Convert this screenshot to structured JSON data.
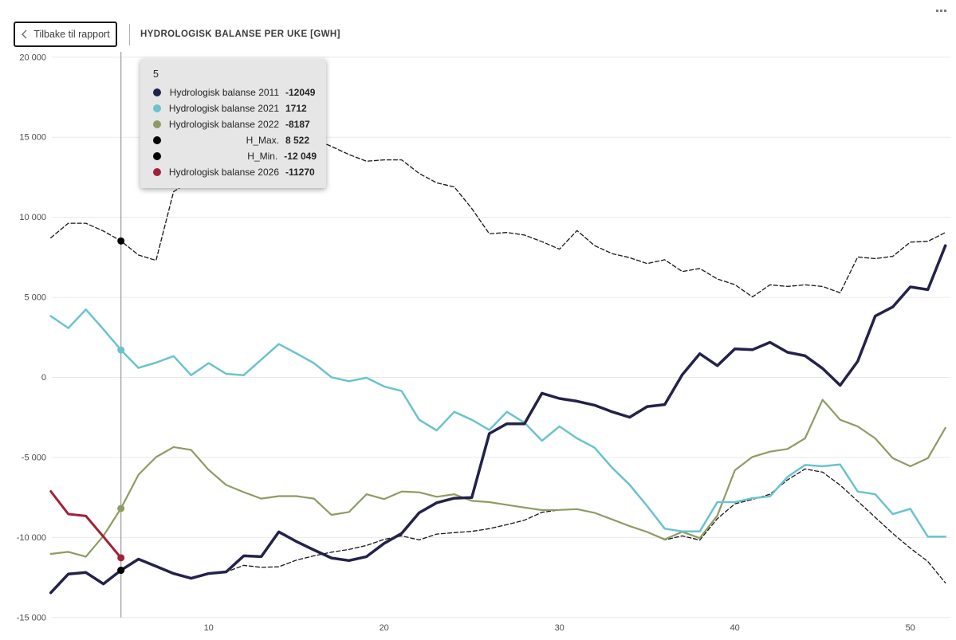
{
  "header": {
    "back_button": {
      "label": "Tilbake til rapport"
    },
    "title": "HYDROLOGISK BALANSE PER UKE [GWH]"
  },
  "tooltip": {
    "week_label": "5",
    "rows": [
      {
        "label": "Hydrologisk balanse 2011",
        "value": "-12049",
        "color": "#23224a"
      },
      {
        "label": "Hydrologisk balanse 2021",
        "value": "1712",
        "color": "#6ac3ce"
      },
      {
        "label": "Hydrologisk balanse 2022",
        "value": "-8187",
        "color": "#8d9c63"
      },
      {
        "label": "H_Max.",
        "value": "8 522",
        "color": "#000000"
      },
      {
        "label": "H_Min.",
        "value": "-12 049",
        "color": "#000000"
      },
      {
        "label": "Hydrologisk balanse 2026",
        "value": "-11270",
        "color": "#a32138"
      }
    ]
  },
  "chart_data": {
    "type": "line",
    "title": "HYDROLOGISK BALANSE PER UKE [GWH]",
    "x_unit": "uke (week)",
    "ylim": [
      -15000,
      20000
    ],
    "xlim": [
      1,
      52
    ],
    "grid": true,
    "ruler_week": 5,
    "y_ticks": [
      {
        "value": 20000,
        "label": "20 000"
      },
      {
        "value": 15000,
        "label": "15 000"
      },
      {
        "value": 10000,
        "label": "10 000"
      },
      {
        "value": 5000,
        "label": "5 000"
      },
      {
        "value": 0,
        "label": "0"
      },
      {
        "value": -5000,
        "label": "-5 000"
      },
      {
        "value": -10000,
        "label": "-10 000"
      },
      {
        "value": -15000,
        "label": "-15 000"
      }
    ],
    "x_ticks": [
      {
        "value": 10,
        "label": "10"
      },
      {
        "value": 20,
        "label": "20"
      },
      {
        "value": 30,
        "label": "30"
      },
      {
        "value": 40,
        "label": "40"
      },
      {
        "value": 50,
        "label": "50"
      }
    ],
    "series": [
      {
        "name": "Hydrologisk balanse 2011",
        "color": "#23224a",
        "width": 3.5,
        "dash": null,
        "z": 5,
        "marker_color": "#000000",
        "values": [
          -13450,
          -12280,
          -12190,
          -12900,
          -12049,
          -11350,
          -11800,
          -12250,
          -12550,
          -12250,
          -12150,
          -11145,
          -11195,
          -9650,
          -10250,
          -10780,
          -11280,
          -11440,
          -11195,
          -10370,
          -9750,
          -8460,
          -7830,
          -7550,
          -7510,
          -3510,
          -2900,
          -2900,
          -990,
          -1320,
          -1490,
          -1740,
          -2150,
          -2490,
          -1820,
          -1700,
          170,
          1480,
          730,
          1780,
          1730,
          2190,
          1570,
          1350,
          560,
          -500,
          1000,
          3830,
          4400,
          5650,
          5480,
          8230
        ]
      },
      {
        "name": "Hydrologisk balanse 2021",
        "color": "#6ac3ce",
        "width": 2.5,
        "dash": null,
        "z": 4,
        "marker_color": "#6ac3ce",
        "values": [
          3830,
          3080,
          4240,
          3000,
          1712,
          590,
          920,
          1330,
          140,
          890,
          220,
          140,
          1110,
          2080,
          1500,
          890,
          10,
          -240,
          -25,
          -570,
          -850,
          -2650,
          -3310,
          -2150,
          -2650,
          -3280,
          -2150,
          -2830,
          -3960,
          -3060,
          -3810,
          -4390,
          -5640,
          -6710,
          -8040,
          -9450,
          -9620,
          -9620,
          -7790,
          -7790,
          -7550,
          -7430,
          -6220,
          -5470,
          -5550,
          -5440,
          -7130,
          -7300,
          -8540,
          -8210,
          -9950,
          -9950
        ]
      },
      {
        "name": "Hydrologisk balanse 2022",
        "color": "#8d9c63",
        "width": 2.2,
        "dash": null,
        "z": 3,
        "marker_color": "#8d9c63",
        "values": [
          -11030,
          -10900,
          -11195,
          -9900,
          -8187,
          -6080,
          -4980,
          -4350,
          -4530,
          -5780,
          -6720,
          -7170,
          -7570,
          -7420,
          -7420,
          -7570,
          -8590,
          -8410,
          -7300,
          -7600,
          -7130,
          -7180,
          -7460,
          -7300,
          -7710,
          -7790,
          -7960,
          -8130,
          -8290,
          -8280,
          -8230,
          -8460,
          -8870,
          -9290,
          -9660,
          -10120,
          -9650,
          -10040,
          -8630,
          -5800,
          -4970,
          -4640,
          -4470,
          -3810,
          -1400,
          -2650,
          -3060,
          -3810,
          -5050,
          -5550,
          -5050,
          -3150
        ]
      },
      {
        "name": "H_Max.",
        "color": "#161616",
        "width": 1.3,
        "dash": "5 3",
        "z": 1,
        "marker_color": "#000000",
        "values": [
          8720,
          9630,
          9630,
          9140,
          8522,
          7640,
          7310,
          11600,
          12300,
          12900,
          13400,
          13900,
          14300,
          14600,
          14800,
          14900,
          14430,
          13920,
          13500,
          13585,
          13585,
          12740,
          12155,
          11900,
          10550,
          8970,
          9050,
          8890,
          8480,
          8010,
          9170,
          8230,
          7730,
          7480,
          7110,
          7350,
          6610,
          6800,
          6150,
          5790,
          5030,
          5780,
          5680,
          5780,
          5680,
          5280,
          7520,
          7420,
          7560,
          8450,
          8500,
          9050
        ]
      },
      {
        "name": "H_Min.",
        "color": "#161616",
        "width": 1.3,
        "dash": "5 3",
        "z": 2,
        "marker_color": "#000000",
        "values": [
          -13450,
          -12280,
          -12190,
          -12900,
          -12049,
          -11350,
          -11800,
          -12250,
          -12550,
          -12250,
          -12150,
          -11744,
          -11863,
          -11830,
          -11414,
          -11145,
          -10916,
          -10747,
          -10500,
          -10120,
          -9900,
          -10150,
          -9790,
          -9700,
          -9620,
          -9450,
          -9200,
          -8920,
          -8430,
          -8280,
          -8230,
          -8460,
          -8870,
          -9290,
          -9660,
          -10150,
          -9900,
          -10160,
          -8820,
          -7900,
          -7620,
          -7300,
          -6400,
          -5720,
          -5920,
          -6730,
          -7730,
          -8740,
          -9750,
          -10670,
          -11500,
          -12840
        ]
      },
      {
        "name": "Hydrologisk balanse 2026",
        "color": "#a32138",
        "width": 3,
        "dash": null,
        "z": 6,
        "marker_color": "#a32138",
        "values": [
          -7120,
          -8540,
          -8660,
          -9950,
          -11270,
          null,
          null,
          null,
          null,
          null,
          null,
          null,
          null,
          null,
          null,
          null,
          null,
          null,
          null,
          null,
          null,
          null,
          null,
          null,
          null,
          null,
          null,
          null,
          null,
          null,
          null,
          null,
          null,
          null,
          null,
          null,
          null,
          null,
          null,
          null,
          null,
          null,
          null,
          null,
          null,
          null,
          null,
          null,
          null,
          null,
          null,
          null
        ]
      }
    ]
  }
}
